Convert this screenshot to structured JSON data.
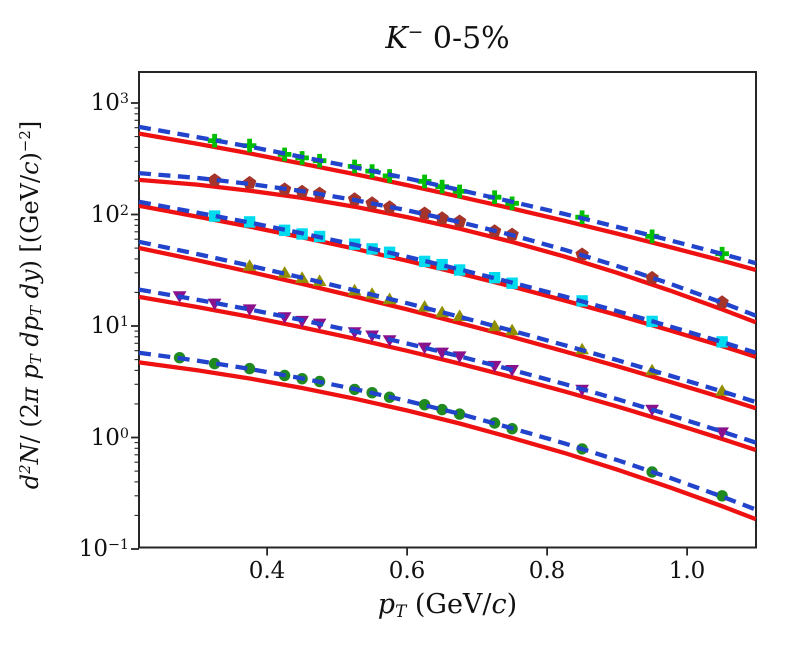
{
  "chart_data": {
    "type": "line",
    "title": "K− 0-5%",
    "title_segments": [
      {
        "t": "K",
        "it": true
      },
      {
        "t": "−",
        "pos": "sup"
      },
      {
        "t": " 0-5%"
      }
    ],
    "xlabel": "pT (GeV/c)",
    "xlabel_segments": [
      {
        "t": "p",
        "it": true
      },
      {
        "t": "T",
        "pos": "sub",
        "it": true
      },
      {
        "t": " (GeV/"
      },
      {
        "t": "c",
        "it": true
      },
      {
        "t": ")"
      }
    ],
    "ylabel": "d2N/ (2π pT dpT dy) [(GeV/c)−2]",
    "ylabel_segments": [
      {
        "t": "d",
        "it": true
      },
      {
        "t": "2",
        "pos": "sup",
        "it": true
      },
      {
        "t": "N",
        "it": true
      },
      {
        "t": "/ (2"
      },
      {
        "t": "π",
        "it": true
      },
      {
        "t": " "
      },
      {
        "t": "p",
        "it": true
      },
      {
        "t": "T",
        "pos": "sub",
        "it": true
      },
      {
        "t": " "
      },
      {
        "t": "dp",
        "it": true
      },
      {
        "t": "T",
        "pos": "sub",
        "it": true
      },
      {
        "t": " "
      },
      {
        "t": "dy",
        "it": true
      },
      {
        "t": ") [(GeV/"
      },
      {
        "t": "c",
        "it": true
      },
      {
        "t": ")"
      },
      {
        "t": "−2",
        "pos": "sup"
      },
      {
        "t": "]"
      }
    ],
    "x_axis": {
      "lim": [
        0.217,
        1.098
      ],
      "ticks": [
        {
          "v": 0.4,
          "label": "0.4"
        },
        {
          "v": 0.6,
          "label": "0.6"
        },
        {
          "v": 0.8,
          "label": "0.8"
        },
        {
          "v": 1.0,
          "label": "1.0"
        }
      ]
    },
    "y_axis": {
      "scale": "log",
      "lim": [
        0.1,
        1897
      ],
      "tick_base": "10",
      "ticks": [
        {
          "v": 1000,
          "exp": "3"
        },
        {
          "v": 100,
          "exp": "2"
        },
        {
          "v": 10,
          "exp": "1"
        },
        {
          "v": 1,
          "exp": "0"
        },
        {
          "v": 0.1,
          "exp": "−1"
        }
      ]
    },
    "line_styles": {
      "blue_dashed": {
        "color": "#2244cc",
        "width": 4.3,
        "dash": "12 7.5"
      },
      "red_solid": {
        "color": "#ee1111",
        "width": 4.3
      }
    },
    "line_x": [
      0.217,
      0.3,
      0.375,
      0.45,
      0.525,
      0.6,
      0.675,
      0.75,
      0.825,
      0.9,
      0.975,
      1.05,
      1.098
    ],
    "series": [
      {
        "name": "green-plus",
        "marker": "plus",
        "color": "#00bf00",
        "red_scale": 0.87,
        "pt": [
          0.325,
          0.375,
          0.425,
          0.45,
          0.475,
          0.525,
          0.55,
          0.575,
          0.625,
          0.65,
          0.675,
          0.725,
          0.75,
          0.85,
          0.95,
          1.05
        ],
        "values": [
          459,
          415,
          346,
          322,
          304,
          270,
          245,
          222,
          198,
          178,
          161,
          143,
          126,
          94.5,
          63.8,
          44.5
        ],
        "line_values": [
          611,
          495,
          406,
          328,
          265,
          211,
          166,
          130,
          101,
          77.4,
          58.8,
          44.3,
          36.6
        ]
      },
      {
        "name": "brown-pentagon",
        "marker": "pentagon",
        "color": "#a5342a",
        "red_scale": 0.87,
        "pt": [
          0.325,
          0.375,
          0.425,
          0.45,
          0.475,
          0.525,
          0.55,
          0.575,
          0.625,
          0.65,
          0.675,
          0.725,
          0.75,
          0.85,
          0.95,
          1.05
        ],
        "values": [
          203,
          192,
          168,
          160,
          154,
          137,
          126,
          116,
          102,
          92.5,
          86.5,
          70.9,
          66.0,
          43.8,
          27.0,
          16.3
        ],
        "line_values": [
          235,
          213,
          188,
          162,
          135,
          109,
          85.7,
          65.3,
          48.2,
          34.5,
          24.0,
          16.2,
          12.4
        ]
      },
      {
        "name": "cyan-square",
        "marker": "square",
        "color": "#00dcee",
        "red_scale": 0.92,
        "pt": [
          0.325,
          0.375,
          0.425,
          0.45,
          0.475,
          0.525,
          0.55,
          0.575,
          0.625,
          0.65,
          0.675,
          0.725,
          0.75,
          0.85,
          0.95,
          1.05
        ],
        "values": [
          96.8,
          85.9,
          72.2,
          66.9,
          63.5,
          54.2,
          49.1,
          45.8,
          38.0,
          35.5,
          31.8,
          27.1,
          24.2,
          16.8,
          11.0,
          7.2
        ],
        "line_values": [
          130,
          104,
          84.7,
          67.8,
          53.6,
          41.8,
          32.2,
          24.5,
          18.4,
          13.6,
          9.94,
          7.18,
          5.76
        ]
      },
      {
        "name": "olive-triangle-up",
        "marker": "triangle-up",
        "color": "#8f8f00",
        "red_scale": 0.88,
        "pt": [
          0.375,
          0.425,
          0.45,
          0.475,
          0.525,
          0.55,
          0.575,
          0.625,
          0.65,
          0.675,
          0.725,
          0.75,
          0.85,
          0.95,
          1.05
        ],
        "values": [
          34.4,
          29.8,
          26.8,
          25.1,
          20.7,
          19.3,
          17.3,
          14.8,
          13.2,
          12.2,
          9.9,
          9.1,
          6.13,
          3.97,
          2.6
        ],
        "line_values": [
          56.9,
          44.2,
          34.8,
          27.1,
          20.9,
          16.0,
          12.1,
          9.07,
          6.73,
          4.95,
          3.6,
          2.59,
          2.08
        ]
      },
      {
        "name": "purple-triangle-down",
        "marker": "triangle-down",
        "color": "#8b108b",
        "red_scale": 0.86,
        "pt": [
          0.275,
          0.325,
          0.375,
          0.425,
          0.45,
          0.475,
          0.525,
          0.55,
          0.575,
          0.625,
          0.65,
          0.675,
          0.725,
          0.75,
          0.85,
          0.95,
          1.05
        ],
        "values": [
          18.6,
          16.0,
          14.2,
          12.1,
          11.2,
          10.6,
          8.87,
          8.28,
          7.52,
          6.45,
          5.82,
          5.38,
          4.42,
          4.06,
          2.7,
          1.79,
          1.12
        ],
        "line_values": [
          21.2,
          17.2,
          14.1,
          11.3,
          8.94,
          6.97,
          5.35,
          4.04,
          3.01,
          2.21,
          1.59,
          1.13,
          0.9
        ]
      },
      {
        "name": "green-circle",
        "marker": "circle",
        "color": "#1f8a1f",
        "red_scale": 0.82,
        "pt": [
          0.275,
          0.325,
          0.375,
          0.425,
          0.45,
          0.475,
          0.525,
          0.55,
          0.575,
          0.625,
          0.65,
          0.675,
          0.725,
          0.75,
          0.85,
          0.95,
          1.05
        ],
        "values": [
          5.2,
          4.6,
          4.15,
          3.6,
          3.37,
          3.18,
          2.7,
          2.52,
          2.3,
          1.97,
          1.78,
          1.62,
          1.35,
          1.2,
          0.79,
          0.49,
          0.3
        ],
        "line_values": [
          5.75,
          4.89,
          4.12,
          3.39,
          2.72,
          2.13,
          1.63,
          1.21,
          0.885,
          0.629,
          0.436,
          0.295,
          0.226
        ]
      }
    ],
    "spine_color": "#262626",
    "legend": null,
    "grid": false
  }
}
